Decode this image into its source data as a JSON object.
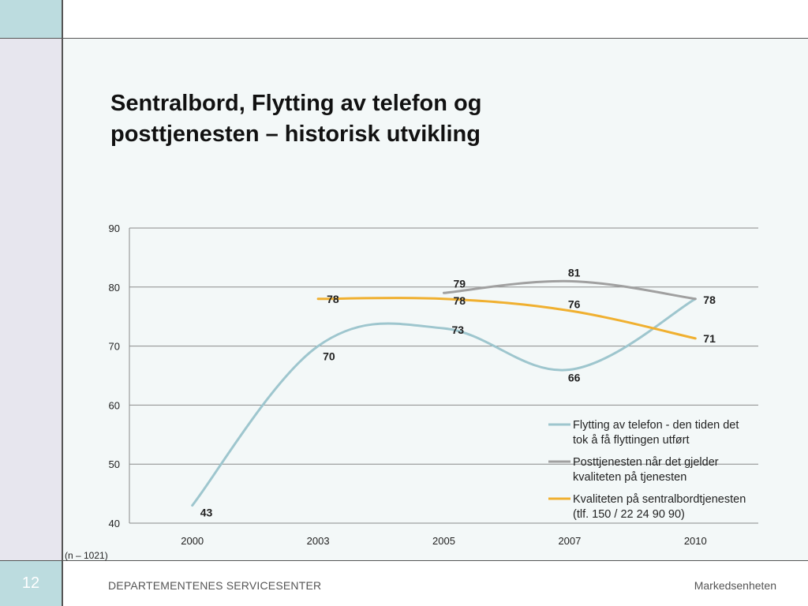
{
  "slide": {
    "title": "Sentralbord, Flytting av telefon og posttjenesten – historisk utvikling",
    "slide_number": "12",
    "footer_org": "DEPARTEMENTENES SERVICESENTER",
    "footer_unit": "Markedsenheten",
    "sample_note": "(n – 1021)"
  },
  "colors": {
    "accent": "#bcdcdf",
    "series_flytting": "#9ec6ce",
    "series_post": "#a0a0a0",
    "series_sentral": "#f0b030"
  },
  "chart_data": {
    "type": "line",
    "categories": [
      "2000",
      "2003",
      "2005",
      "2007",
      "2010"
    ],
    "ylim": [
      40,
      90
    ],
    "yticks": [
      40,
      50,
      60,
      70,
      80,
      90
    ],
    "grid": true,
    "legend_position": "bottom-right",
    "series": [
      {
        "name": "Flytting av telefon - den tiden det tok å få flyttingen utført",
        "legend_lines": [
          "Flytting av telefon - den tiden det",
          "tok å få flyttingen utført"
        ],
        "values": [
          43,
          70,
          73,
          66,
          78
        ],
        "labels": [
          "43",
          "70",
          "73",
          "66",
          "78"
        ]
      },
      {
        "name": "Posttjenesten når det gjelder kvaliteten på tjenesten",
        "legend_lines": [
          "Posttjenesten når det gjelder",
          "kvaliteten på tjenesten"
        ],
        "values": [
          null,
          null,
          79,
          81,
          78
        ],
        "labels": [
          null,
          null,
          "79",
          "81",
          null
        ]
      },
      {
        "name": "Kvaliteten på sentralbordtjenesten (tlf. 150 / 22 24 90 90)",
        "legend_lines": [
          "Kvaliteten på sentralbordtjenesten",
          "(tlf. 150 / 22 24 90 90)"
        ],
        "values": [
          null,
          78,
          78,
          76,
          71.3
        ],
        "labels": [
          null,
          "78",
          "78",
          "76",
          "71"
        ]
      }
    ]
  }
}
